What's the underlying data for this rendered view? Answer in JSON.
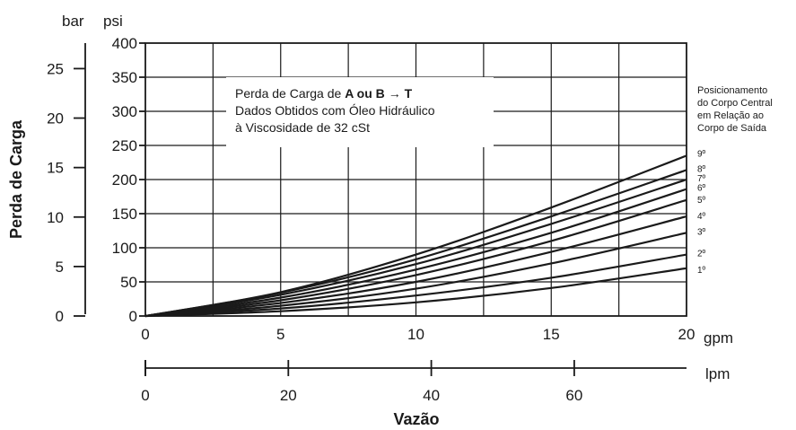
{
  "chart_data": {
    "type": "line",
    "title": "",
    "note_lines": [
      {
        "parts": [
          {
            "t": "Perda de Carga de ",
            "b": false
          },
          {
            "t": "A ou B ",
            "b": true
          },
          {
            "t": "→",
            "b": true,
            "arrow": true
          },
          {
            "t": " T",
            "b": true
          }
        ]
      },
      {
        "parts": [
          {
            "t": "Dados Obtidos com Óleo Hidráulico",
            "b": false
          }
        ]
      },
      {
        "parts": [
          {
            "t": "à Viscosidade de 32 cSt",
            "b": false
          }
        ]
      }
    ],
    "xlabel": "Vazão",
    "ylabel": "Perda de Carga",
    "x_unit": "gpm",
    "x_secondary_unit": "lpm",
    "y_unit_bar": "bar",
    "y_unit_psi": "psi",
    "xlim": [
      0,
      20
    ],
    "ylim": [
      0,
      400
    ],
    "grid": true,
    "x_ticks": [
      0,
      5,
      10,
      15,
      20
    ],
    "y_ticks": [
      0,
      50,
      100,
      150,
      200,
      250,
      300,
      350,
      400
    ],
    "lpm_ticks": [
      0,
      20,
      40,
      60
    ],
    "bar_ticks": [
      0,
      5,
      10,
      15,
      20,
      25
    ],
    "legend_title_lines": [
      "Posicionamento",
      "do Corpo Central",
      "em Relação ao",
      "Corpo de Saída"
    ],
    "series": [
      {
        "name": "1º",
        "points": [
          [
            0,
            0
          ],
          [
            5,
            7
          ],
          [
            10,
            20
          ],
          [
            15,
            41
          ],
          [
            20,
            70
          ]
        ]
      },
      {
        "name": "2º",
        "points": [
          [
            0,
            0
          ],
          [
            5,
            11
          ],
          [
            10,
            30
          ],
          [
            15,
            56
          ],
          [
            20,
            90
          ]
        ]
      },
      {
        "name": "3º",
        "points": [
          [
            0,
            0
          ],
          [
            5,
            15
          ],
          [
            10,
            40
          ],
          [
            15,
            77
          ],
          [
            20,
            122
          ]
        ]
      },
      {
        "name": "4º",
        "points": [
          [
            0,
            0
          ],
          [
            5,
            19
          ],
          [
            10,
            50
          ],
          [
            15,
            94
          ],
          [
            20,
            146
          ]
        ]
      },
      {
        "name": "5º",
        "points": [
          [
            0,
            0
          ],
          [
            5,
            23
          ],
          [
            10,
            60
          ],
          [
            15,
            110
          ],
          [
            20,
            170
          ]
        ]
      },
      {
        "name": "6º",
        "points": [
          [
            0,
            0
          ],
          [
            5,
            27
          ],
          [
            10,
            68
          ],
          [
            15,
            122
          ],
          [
            20,
            186
          ]
        ]
      },
      {
        "name": "7º",
        "points": [
          [
            0,
            0
          ],
          [
            5,
            31
          ],
          [
            10,
            76
          ],
          [
            15,
            135
          ],
          [
            20,
            200
          ]
        ]
      },
      {
        "name": "8º",
        "points": [
          [
            0,
            0
          ],
          [
            5,
            34
          ],
          [
            10,
            83
          ],
          [
            15,
            146
          ],
          [
            20,
            214
          ]
        ]
      },
      {
        "name": "9º",
        "points": [
          [
            0,
            0
          ],
          [
            5,
            35
          ],
          [
            10,
            90
          ],
          [
            15,
            159
          ],
          [
            20,
            235
          ]
        ]
      }
    ]
  }
}
